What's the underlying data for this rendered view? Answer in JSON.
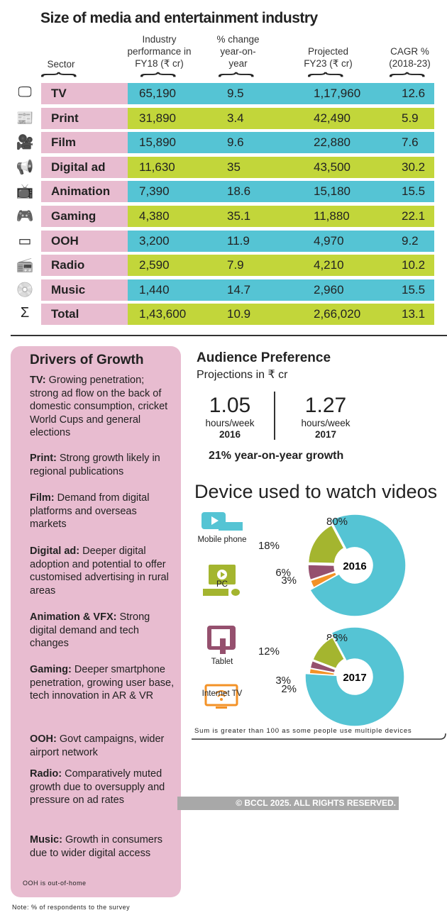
{
  "table": {
    "title": "Size of media and entertainment industry",
    "headers": [
      "Sector",
      "Industry performance in FY18 (₹ cr)",
      "% change year-on-year",
      "Projected FY23 (₹ cr)",
      "CAGR % (2018-23)"
    ],
    "rows": [
      {
        "sector": "TV",
        "icon": "tv-icon",
        "fy18": "65,190",
        "change": "9.5",
        "fy23": "1,17,960",
        "cagr": "12.6"
      },
      {
        "sector": "Print",
        "icon": "newspaper-icon",
        "fy18": "31,890",
        "change": "3.4",
        "fy23": "42,490",
        "cagr": "5.9"
      },
      {
        "sector": "Film",
        "icon": "film-camera-icon",
        "fy18": "15,890",
        "change": "9.6",
        "fy23": "22,880",
        "cagr": "7.6"
      },
      {
        "sector": "Digital ad",
        "icon": "megaphone-icon",
        "fy18": "11,630",
        "change": "35",
        "fy23": "43,500",
        "cagr": "30.2"
      },
      {
        "sector": "Animation TV",
        "icon": "animation-tv-icon",
        "fy18": "7,390",
        "change": "18.6",
        "fy23": "15,180",
        "cagr": "15.5"
      },
      {
        "sector": "Gaming",
        "icon": "gamepad-icon",
        "fy18": "4,380",
        "change": "35.1",
        "fy23": "11,880",
        "cagr": "22.1"
      },
      {
        "sector": "OOH",
        "icon": "billboard-icon",
        "fy18": "3,200",
        "change": "11.9",
        "fy23": "4,970",
        "cagr": "9.2"
      },
      {
        "sector": "Radio",
        "icon": "radio-icon",
        "fy18": "2,590",
        "change": "7.9",
        "fy23": "4,210",
        "cagr": "10.2"
      },
      {
        "sector": "Music",
        "icon": "music-disc-icon",
        "fy18": "1,440",
        "change": "14.7",
        "fy23": "2,960",
        "cagr": "15.5"
      },
      {
        "sector": "Total",
        "icon": "sum-icon",
        "fy18": "1,43,600",
        "change": "10.9",
        "fy23": "2,66,020",
        "cagr": "13.1"
      }
    ],
    "colors": {
      "sector": "#e8bcd0",
      "odd": "#55c4d4",
      "even": "#c2d63a"
    }
  },
  "drivers": {
    "title": "Drivers of Growth",
    "items": [
      {
        "label": "TV:",
        "text": "Growing penetration; strong ad flow on the back of domestic consumption, cricket World Cups and general elections"
      },
      {
        "label": "Print:",
        "text": "Strong growth likely in regional publications"
      },
      {
        "label": "Film:",
        "text": "Demand from digital platforms and overseas markets"
      },
      {
        "label": "Digital ad:",
        "text": "Deeper digital adoption and potential to offer customised advertising in rural areas"
      },
      {
        "label": "Animation & VFX:",
        "text": "Strong digital demand and tech changes"
      },
      {
        "label": "Gaming:",
        "text": "Deeper smartphone penetration, growing user base, tech innovation in AR & VR"
      },
      {
        "label": "OOH:",
        "text": "Govt campaigns, wider airport network"
      },
      {
        "label": "Radio:",
        "text": "Comparatively muted growth due to oversupply and pressure on ad rates"
      },
      {
        "label": "Music:",
        "text": "Growth in consumers due to wider digital access"
      }
    ],
    "footnote": "OOH is out-of-home"
  },
  "audience": {
    "title": "Audience Preference",
    "subtitle": "Projections in ₹ cr",
    "stats": [
      {
        "value": "1.05",
        "unit": "hours/week",
        "year": "2016"
      },
      {
        "value": "1.27",
        "unit": "hours/week",
        "year": "2017"
      }
    ],
    "growth": "21% year-on-year growth"
  },
  "chart_data": [
    {
      "type": "pie",
      "title": "Device used to watch videos",
      "center_label": "2016",
      "categories": [
        "Mobile phone",
        "Internet TV",
        "Tablet",
        "PC"
      ],
      "values": [
        80,
        3,
        6,
        18
      ],
      "labels": [
        "80%",
        "3%",
        "6%",
        "18%"
      ],
      "colors": [
        "#55c4d4",
        "#f39227",
        "#95506e",
        "#a4b52f"
      ]
    },
    {
      "type": "pie",
      "center_label": "2017",
      "categories": [
        "Mobile phone",
        "Internet TV",
        "Tablet",
        "PC"
      ],
      "values": [
        88,
        2,
        3,
        12
      ],
      "labels": [
        "88%",
        "2%",
        "3%",
        "12%"
      ],
      "colors": [
        "#55c4d4",
        "#f39227",
        "#95506e",
        "#a4b52f"
      ]
    }
  ],
  "devices": {
    "title": "Device used to watch videos",
    "legend": [
      "Mobile phone",
      "PC",
      "Tablet",
      "Internet TV"
    ],
    "note": "Sum is greater than 100 as some people use multiple devices"
  },
  "copyright": "© BCCL 2025. ALL RIGHTS RESERVED.",
  "note": "Note: % of respondents to the survey"
}
